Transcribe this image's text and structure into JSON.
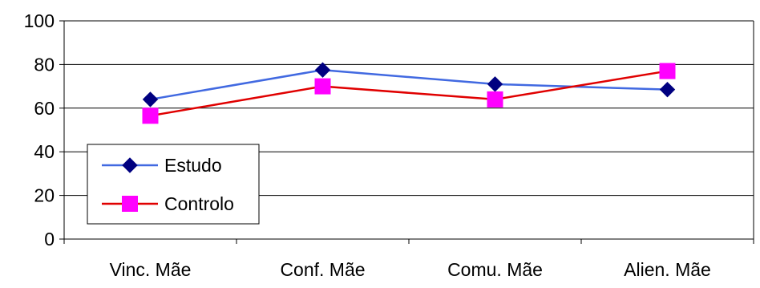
{
  "chart_data": {
    "type": "line",
    "categories": [
      "Vinc. Mãe",
      "Conf. Mãe",
      "Comu. Mãe",
      "Alien. Mãe"
    ],
    "series": [
      {
        "name": "Estudo",
        "values": [
          64,
          77.5,
          71,
          68.5
        ],
        "color": "#4169E1",
        "marker": "diamond",
        "marker_color": "#000080"
      },
      {
        "name": "Controlo",
        "values": [
          56.5,
          70,
          64,
          77
        ],
        "color": "#E00000",
        "marker": "square",
        "marker_color": "#FF00FF"
      }
    ],
    "ylim": [
      0,
      100
    ],
    "yticks": [
      "0",
      "20",
      "40",
      "60",
      "80",
      "100"
    ],
    "grid": true,
    "legend_position": "bottom-left"
  }
}
